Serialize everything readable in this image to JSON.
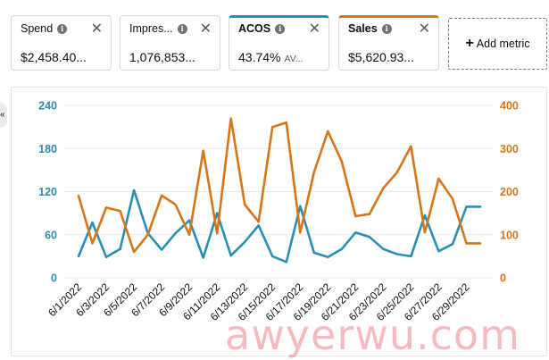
{
  "metrics": [
    {
      "label": "Spend",
      "value": "$2,458.40...",
      "suffix": "",
      "state": "inactive"
    },
    {
      "label": "Impres...",
      "value": "1,076,853...",
      "suffix": "",
      "state": "inactive"
    },
    {
      "label": "ACOS",
      "value": "43.74%",
      "suffix": "AV...",
      "state": "active",
      "color": "#2a8fb5"
    },
    {
      "label": "Sales",
      "value": "$5,620.93...",
      "suffix": "",
      "state": "active",
      "color": "#d6761a"
    }
  ],
  "add_metric": {
    "label": "Add metric"
  },
  "collapse_tab": {
    "glyph": "«"
  },
  "watermark": "awyerwu.com",
  "chart_data": {
    "type": "line",
    "x": [
      "6/1/2022",
      "6/2/2022",
      "6/3/2022",
      "6/4/2022",
      "6/5/2022",
      "6/6/2022",
      "6/7/2022",
      "6/8/2022",
      "6/9/2022",
      "6/10/2022",
      "6/11/2022",
      "6/12/2022",
      "6/13/2022",
      "6/14/2022",
      "6/15/2022",
      "6/16/2022",
      "6/17/2022",
      "6/18/2022",
      "6/19/2022",
      "6/20/2022",
      "6/21/2022",
      "6/22/2022",
      "6/23/2022",
      "6/24/2022",
      "6/25/2022",
      "6/26/2022",
      "6/27/2022",
      "6/28/2022",
      "6/29/2022",
      "6/30/2022"
    ],
    "tick_labels": [
      "6/1/2022",
      "6/3/2022",
      "6/5/2022",
      "6/7/2022",
      "6/9/2022",
      "6/11/2022",
      "6/13/2022",
      "6/15/2022",
      "6/17/2022",
      "6/19/2022",
      "6/21/2022",
      "6/23/2022",
      "6/25/2022",
      "6/27/2022",
      "6/29/2022"
    ],
    "series": [
      {
        "name": "ACOS",
        "axis": "left",
        "color": "#2a8fb5",
        "values": [
          30,
          77,
          29,
          40,
          122,
          62,
          39,
          62,
          80,
          28,
          90,
          31,
          50,
          73,
          30,
          22,
          100,
          35,
          29,
          40,
          63,
          57,
          40,
          33,
          30,
          87,
          37,
          47,
          99,
          99
        ]
      },
      {
        "name": "Sales",
        "axis": "right",
        "color": "#d6761a",
        "values": [
          190,
          80,
          163,
          155,
          60,
          100,
          191,
          170,
          100,
          295,
          103,
          370,
          170,
          130,
          350,
          360,
          105,
          245,
          340,
          270,
          143,
          148,
          208,
          245,
          305,
          105,
          230,
          183,
          80,
          80
        ]
      }
    ],
    "y_left": {
      "ticks": [
        0,
        60,
        120,
        180,
        240
      ],
      "range": [
        0,
        240
      ],
      "color": "#2a8fb5"
    },
    "y_right": {
      "ticks": [
        0,
        100,
        200,
        300,
        400
      ],
      "range": [
        0,
        400
      ],
      "color": "#d6761a"
    },
    "grid": true
  }
}
